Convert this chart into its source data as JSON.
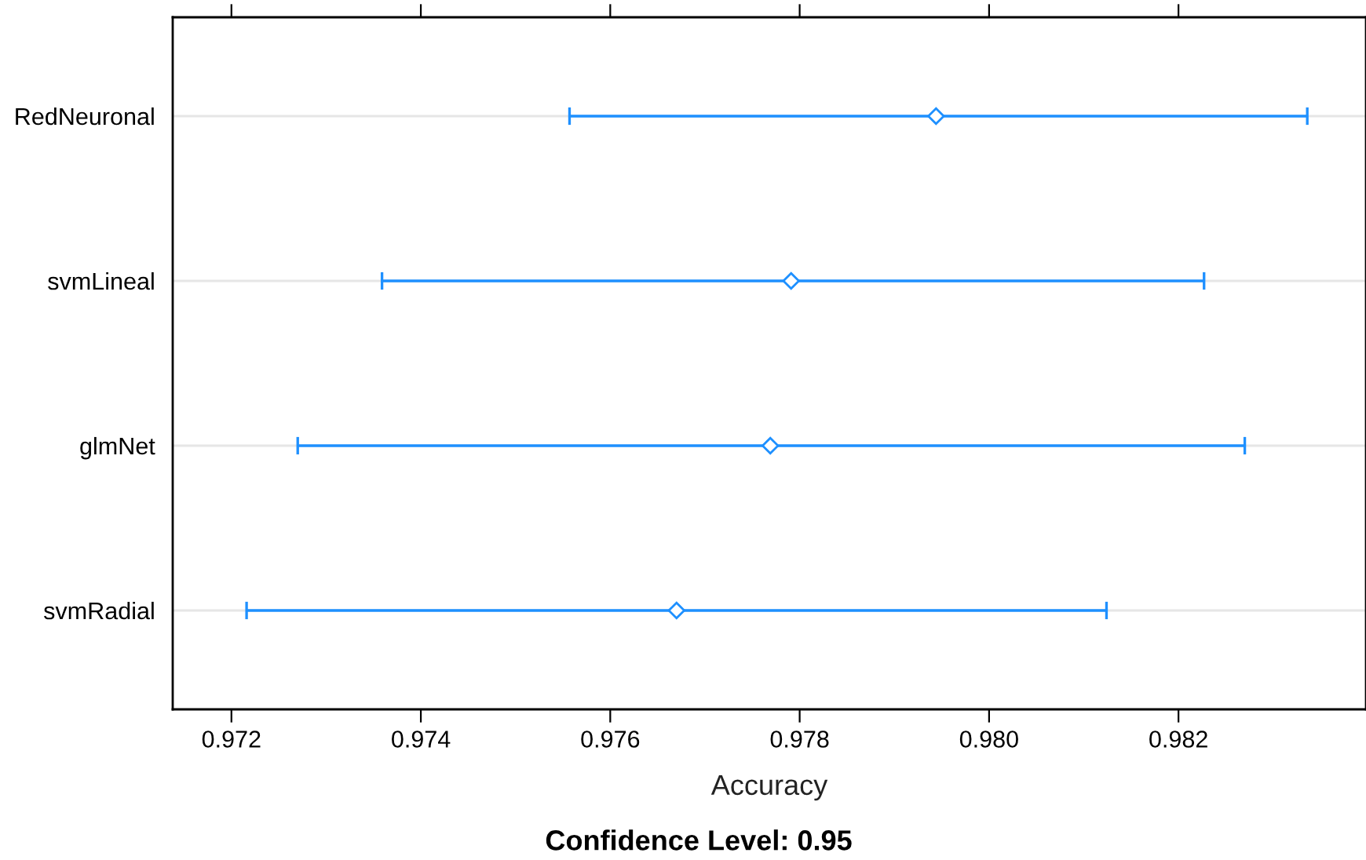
{
  "chart_data": {
    "type": "scatter",
    "orientation": "horizontal",
    "categories": [
      "RedNeuronal",
      "svmLineal",
      "glmNet",
      "svmRadial"
    ],
    "series": [
      {
        "color": "#1e90ff",
        "values": [
          0.97944,
          0.97791,
          0.97769,
          0.9767
        ],
        "errors": [
          [
            0.97557,
            0.98336
          ],
          [
            0.97359,
            0.98227
          ],
          [
            0.9727,
            0.9827
          ],
          [
            0.97216,
            0.98124
          ]
        ]
      }
    ],
    "xlim": [
      0.97138,
      0.98398
    ],
    "xticks": [
      {
        "value": 0.972,
        "label": "0.972"
      },
      {
        "value": 0.974,
        "label": "0.974"
      },
      {
        "value": 0.976,
        "label": "0.976"
      },
      {
        "value": 0.978,
        "label": "0.978"
      },
      {
        "value": 0.98,
        "label": "0.980"
      },
      {
        "value": 0.982,
        "label": "0.982"
      }
    ],
    "xlabel": "Accuracy",
    "annotations": [
      "Confidence Level: 0.95"
    ],
    "marker": "diamond",
    "grid": "y",
    "legend": false
  }
}
